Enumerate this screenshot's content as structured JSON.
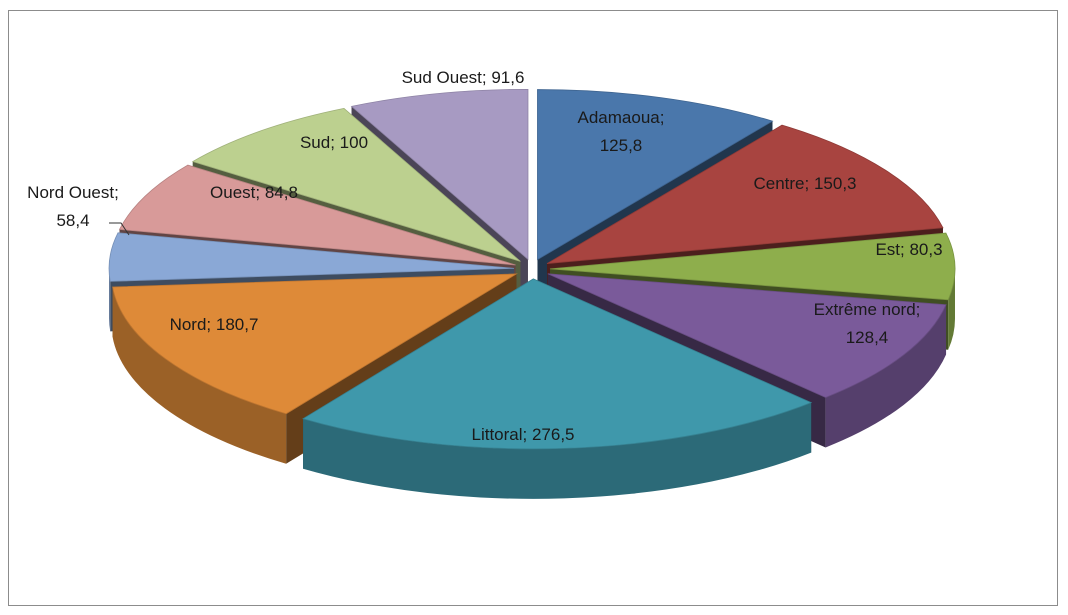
{
  "chart_data": {
    "type": "pie",
    "title": "",
    "categories": [
      "Adamaoua",
      "Centre",
      "Est",
      "Extrême nord",
      "Littoral",
      "Nord",
      "Nord Ouest",
      "Ouest",
      "Sud",
      "Sud Ouest"
    ],
    "values": [
      125.8,
      150.3,
      80.3,
      128.4,
      276.5,
      180.7,
      58.4,
      84.8,
      100,
      91.6
    ],
    "labels": [
      "Adamaoua; 125,8",
      "Centre; 150,3",
      "Est; 80,3",
      "Extrême nord; 128,4",
      "Littoral; 276,5",
      "Nord; 180,7",
      "Nord Ouest; 58,4",
      "Ouest; 84,8",
      "Sud; 100",
      "Sud Ouest; 91,6"
    ],
    "colors": [
      "#4a77ab",
      "#a84440",
      "#8eae4c",
      "#7a5a9a",
      "#3f98ab",
      "#de8a38",
      "#8aa8d6",
      "#d89a99",
      "#bcd08f",
      "#a79ac2"
    ],
    "style": "3d-exploded",
    "legend": "none"
  }
}
